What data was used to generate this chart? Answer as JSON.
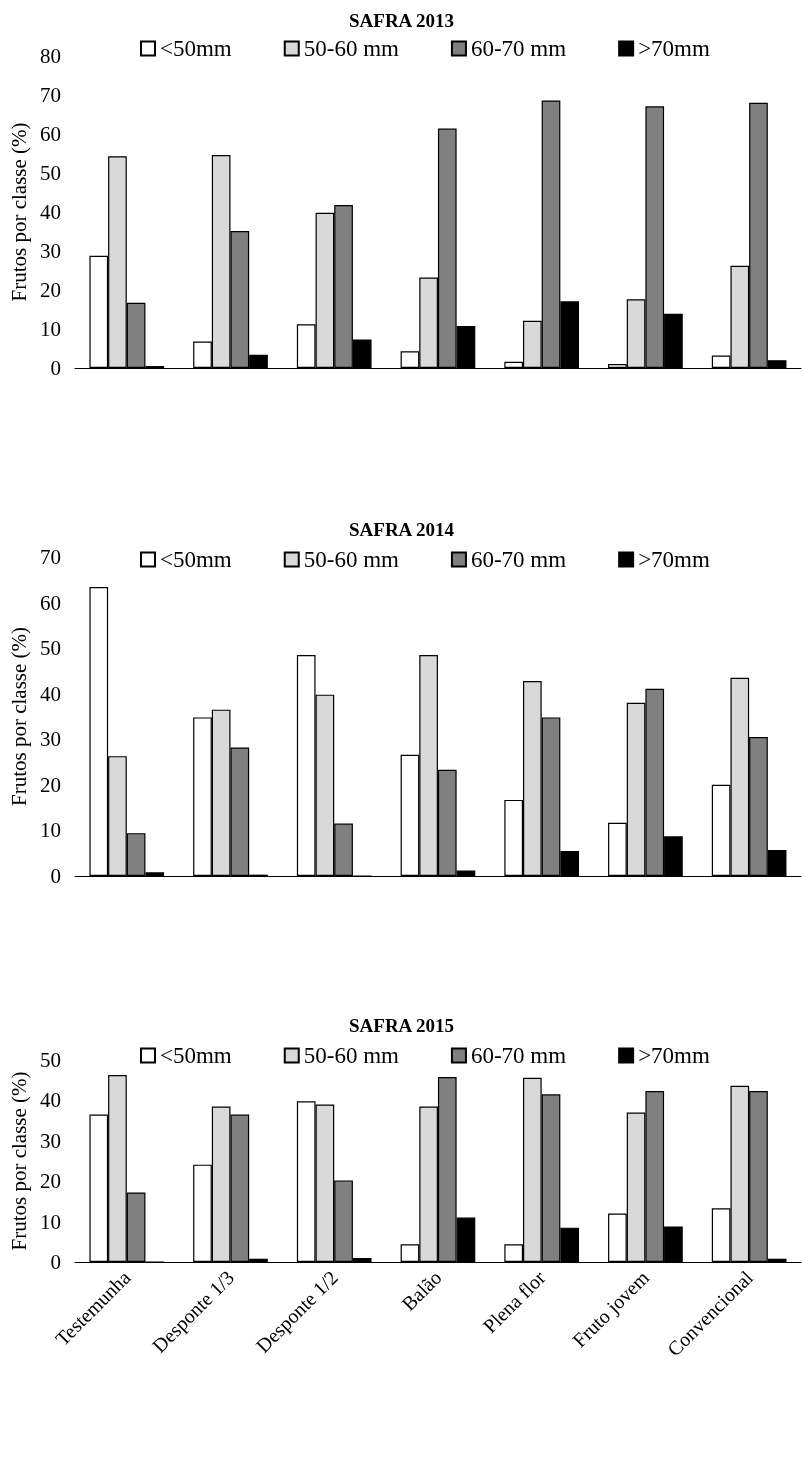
{
  "chart_data": [
    {
      "type": "bar",
      "title": "SAFRA 2013",
      "ylabel": "Frutos por classe (%)",
      "categories": [
        null,
        null,
        null,
        null,
        null,
        null,
        null
      ],
      "series": [
        {
          "name": "<50mm",
          "color": "#ffffff",
          "values": [
            28.8,
            6.8,
            11.2,
            4.3,
            1.6,
            1.0,
            3.2
          ]
        },
        {
          "name": "50-60 mm",
          "color": "#d9d9d9",
          "values": [
            54.3,
            54.6,
            39.8,
            23.2,
            12.1,
            17.6,
            26.2
          ]
        },
        {
          "name": "60-70 mm",
          "color": "#808080",
          "values": [
            16.7,
            35.1,
            41.8,
            61.4,
            68.6,
            67.1,
            68.0
          ]
        },
        {
          "name": ">70mm",
          "color": "#000000",
          "values": [
            0.5,
            3.4,
            7.3,
            10.8,
            17.1,
            13.9,
            2.0
          ]
        }
      ],
      "ylim": [
        0,
        80
      ],
      "yticks": [
        0,
        10,
        20,
        30,
        40,
        50,
        60,
        70,
        80
      ],
      "grid": false,
      "legend": "top",
      "tick_labels": "y"
    },
    {
      "type": "bar",
      "title": "SAFRA 2014",
      "ylabel": "Frutos por classe (%)",
      "categories": [
        null,
        null,
        null,
        null,
        null,
        null,
        null
      ],
      "series": [
        {
          "name": "<50mm",
          "color": "#ffffff",
          "values": [
            63.4,
            34.8,
            48.5,
            26.6,
            16.7,
            11.7,
            20.0
          ]
        },
        {
          "name": "50-60 mm",
          "color": "#d9d9d9",
          "values": [
            26.3,
            36.5,
            39.8,
            48.5,
            42.8,
            38.0,
            43.5
          ]
        },
        {
          "name": "60-70 mm",
          "color": "#808080",
          "values": [
            9.4,
            28.2,
            11.5,
            23.3,
            34.8,
            41.1,
            30.5
          ]
        },
        {
          "name": ">70mm",
          "color": "#000000",
          "values": [
            0.8,
            0.3,
            0,
            1.2,
            5.5,
            8.7,
            5.7
          ]
        }
      ],
      "ylim": [
        0,
        70
      ],
      "yticks": [
        0,
        10,
        20,
        30,
        40,
        50,
        60,
        70
      ],
      "grid": false,
      "legend": "top",
      "tick_labels": "y"
    },
    {
      "type": "bar",
      "title": "SAFRA 2015",
      "ylabel": "Frutos por classe (%)",
      "categories": [
        "Testemunha",
        "Desponte 1/3",
        "Desponte 1/2",
        "Balão",
        "Plena flor",
        "Fruto jovem",
        "Convencional"
      ],
      "series": [
        {
          "name": "<50mm",
          "color": "#ffffff",
          "values": [
            36.5,
            24.1,
            39.8,
            4.4,
            4.4,
            12.0,
            13.3
          ]
        },
        {
          "name": "50-60 mm",
          "color": "#d9d9d9",
          "values": [
            46.3,
            38.5,
            39.0,
            38.5,
            45.6,
            37.0,
            43.6
          ]
        },
        {
          "name": "60-70 mm",
          "color": "#808080",
          "values": [
            17.2,
            36.5,
            20.2,
            45.8,
            41.5,
            42.3,
            42.3
          ]
        },
        {
          "name": ">70mm",
          "color": "#000000",
          "values": [
            0,
            0.8,
            1.0,
            11.0,
            8.5,
            8.8,
            0.8
          ]
        }
      ],
      "ylim": [
        0,
        50
      ],
      "yticks": [
        0,
        10,
        20,
        30,
        40,
        50
      ],
      "grid": false,
      "legend": "top"
    }
  ]
}
